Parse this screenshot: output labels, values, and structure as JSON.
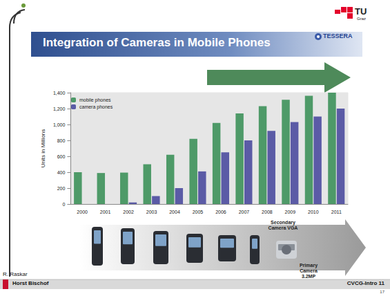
{
  "chart_data": {
    "type": "bar",
    "title": "Integration of Cameras in Mobile Phones",
    "ylabel": "Units in Millions",
    "categories": [
      "2000",
      "2001",
      "2002",
      "2003",
      "2004",
      "2005",
      "2006",
      "2007",
      "2008",
      "2009",
      "2010",
      "2011"
    ],
    "series": [
      {
        "name": "mobile phones",
        "color": "#4e9a68",
        "values": [
          400,
          390,
          395,
          500,
          620,
          820,
          1020,
          1140,
          1230,
          1310,
          1360,
          1400
        ]
      },
      {
        "name": "camera phones",
        "color": "#5b5ba6",
        "values": [
          0,
          0,
          20,
          100,
          200,
          410,
          650,
          800,
          920,
          1030,
          1100,
          1200
        ]
      }
    ],
    "ylim": [
      0,
      1400
    ],
    "yticks": [
      0,
      200,
      400,
      600,
      800,
      1000,
      1200,
      1400
    ],
    "grid": false,
    "legend": "top-left",
    "annotations": [
      "Secondary Camera VGA",
      "Primary Camera 3.2MP",
      "R. Raskar",
      "Horst Bischof",
      "CVCG-Intro 11",
      "17",
      "TESSERA",
      "TU",
      "Graz"
    ]
  }
}
